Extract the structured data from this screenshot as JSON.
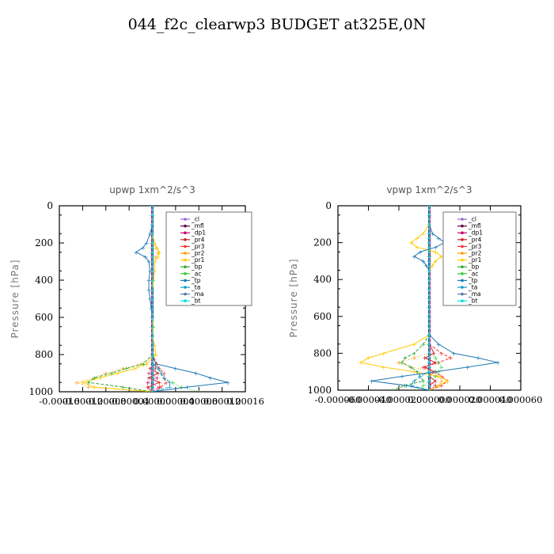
{
  "title": "044_f2c_clearwp3  BUDGET at325E,0N",
  "chart_data": [
    {
      "type": "line",
      "title": "upwp   1xm^2/s^3",
      "xlabel": "",
      "ylabel": "Pressure [hPa]",
      "xlim": [
        -0.00016,
        0.00016
      ],
      "ylim": [
        1000,
        0
      ],
      "xticks": [
        "-0.00012",
        "-0.00008",
        "-0.00004",
        "0.00000",
        "0.00004",
        "0.00008",
        "0.00012",
        "0.00016"
      ],
      "yticks": [
        "0",
        "200",
        "400",
        "600",
        "800",
        "1000"
      ],
      "legend_placement": "top-right",
      "pressure": [
        0,
        50,
        100,
        150,
        200,
        225,
        250,
        275,
        300,
        350,
        400,
        450,
        500,
        550,
        600,
        650,
        700,
        750,
        800,
        850,
        875,
        900,
        925,
        950,
        975,
        1000
      ],
      "series": [
        {
          "name": "_cl",
          "color": "#9966cc",
          "values": [
            0,
            0,
            0,
            0,
            0,
            0,
            0,
            0,
            0,
            0,
            0,
            0,
            0,
            0,
            0,
            0,
            0,
            0,
            0,
            0,
            0,
            0,
            0,
            0,
            0,
            0
          ]
        },
        {
          "name": "_mfl",
          "color": "#66004c",
          "values": [
            0,
            0,
            0,
            0,
            0,
            0,
            0,
            0,
            0,
            0,
            0,
            0,
            0,
            0,
            0,
            0,
            0,
            0,
            0,
            0,
            0,
            0,
            0,
            0,
            0,
            0
          ]
        },
        {
          "name": "_dp1",
          "color": "#cc0066",
          "values": [
            0,
            0,
            0,
            0,
            0,
            0,
            0,
            0,
            0,
            0,
            0,
            0,
            0,
            0,
            0,
            0,
            0,
            0,
            0,
            0,
            5e-06,
            -6e-06,
            8e-06,
            -8e-06,
            1.2e-05,
            0
          ]
        },
        {
          "name": "_pr4",
          "color": "#cc2222",
          "values": [
            0,
            0,
            0,
            0,
            0,
            0,
            0,
            0,
            0,
            0,
            0,
            0,
            0,
            0,
            0,
            0,
            0,
            0,
            0,
            6e-06,
            -4e-06,
            1e-05,
            -6e-06,
            1.2e-05,
            -8e-06,
            0
          ]
        },
        {
          "name": "_pr3",
          "color": "#ff3333",
          "values": [
            0,
            0,
            0,
            0,
            0,
            0,
            0,
            0,
            0,
            0,
            0,
            0,
            0,
            0,
            0,
            0,
            0,
            0,
            0,
            8e-06,
            1.2e-05,
            2e-05,
            2e-05,
            2.4e-05,
            1.4e-05,
            0
          ]
        },
        {
          "name": "_pr2",
          "color": "#ff9900",
          "values": [
            0,
            0,
            0,
            0,
            0,
            6e-06,
            1e-05,
            6e-06,
            0,
            0,
            0,
            0,
            0,
            0,
            0,
            0,
            0,
            0,
            6e-06,
            -2e-05,
            -5e-05,
            -8e-05,
            -0.0001,
            -0.00013,
            -0.00011,
            0
          ]
        },
        {
          "name": "_pr1",
          "color": "#ffcc00",
          "values": [
            0,
            0,
            0,
            0,
            4e-06,
            8e-06,
            1.2e-05,
            1e-05,
            4e-06,
            4e-06,
            2e-06,
            0,
            0,
            0,
            0,
            2e-06,
            0,
            4e-06,
            6e-06,
            -1e-05,
            -3e-05,
            -6e-05,
            -9e-05,
            -0.00012,
            -0.0001,
            0
          ]
        },
        {
          "name": "_bp",
          "color": "#33aa33",
          "values": [
            0,
            0,
            0,
            0,
            0,
            0,
            0,
            0,
            0,
            0,
            0,
            0,
            0,
            0,
            0,
            0,
            0,
            0,
            0,
            -1.5e-05,
            -4.5e-05,
            -7e-05,
            -0.0001,
            -0.00011,
            -5e-05,
            0
          ]
        },
        {
          "name": "_ac",
          "color": "#33cc33",
          "values": [
            0,
            0,
            0,
            0,
            0,
            0,
            0,
            0,
            0,
            0,
            0,
            0,
            0,
            0,
            0,
            0,
            0,
            0,
            0,
            0,
            1e-05,
            1.5e-05,
            2e-05,
            3.5e-05,
            5e-05,
            8e-05
          ]
        },
        {
          "name": "_tp",
          "color": "#1f78b4",
          "values": [
            0,
            0,
            0,
            -4e-06,
            -1e-05,
            -1.6e-05,
            -2.8e-05,
            -1.2e-05,
            -6e-06,
            -4e-06,
            -6e-06,
            -6e-06,
            -4e-06,
            -2e-06,
            0,
            0,
            0,
            0,
            0,
            6e-06,
            4e-05,
            7.5e-05,
            0.0001,
            0.00013,
            6e-05,
            0
          ]
        },
        {
          "name": "_ta",
          "color": "#1199cc",
          "values": [
            0,
            0,
            0,
            0,
            0,
            0,
            0,
            0,
            0,
            0,
            0,
            0,
            0,
            0,
            0,
            0,
            0,
            0,
            0,
            0,
            1e-05,
            1.5e-05,
            2e-05,
            3e-05,
            3e-05,
            0
          ]
        },
        {
          "name": "_ma",
          "color": "#5577aa",
          "values": [
            0,
            0,
            0,
            0,
            0,
            0,
            0,
            0,
            0,
            0,
            0,
            0,
            0,
            0,
            0,
            0,
            0,
            0,
            0,
            0,
            0,
            0,
            0,
            0,
            0,
            0
          ]
        },
        {
          "name": "_bt",
          "color": "#00dddd",
          "values": [
            0,
            0,
            0,
            0,
            0,
            0,
            0,
            0,
            0,
            0,
            0,
            0,
            0,
            0,
            0,
            0,
            0,
            0,
            0,
            0,
            0,
            0,
            0,
            0,
            0,
            0
          ]
        }
      ]
    },
    {
      "type": "line",
      "title": "vpwp   1xm^2/s^3",
      "xlabel": "",
      "ylabel": "Pressure [hPa]",
      "xlim": [
        -6e-05,
        6e-05
      ],
      "ylim": [
        1000,
        0
      ],
      "xticks": [
        "-0.000060",
        "-0.000040",
        "-0.000020",
        "0.000000",
        "0.000020",
        "0.000040",
        "0.000060"
      ],
      "yticks": [
        "0",
        "200",
        "400",
        "600",
        "800",
        "1000"
      ],
      "legend_placement": "top-right",
      "pressure": [
        0,
        50,
        100,
        150,
        175,
        200,
        225,
        250,
        275,
        300,
        325,
        350,
        400,
        450,
        500,
        550,
        600,
        650,
        700,
        750,
        800,
        825,
        850,
        875,
        900,
        925,
        950,
        975,
        1000
      ],
      "series": [
        {
          "name": "_cl",
          "color": "#9966cc",
          "values": [
            0,
            0,
            0,
            0,
            0,
            0,
            0,
            0,
            0,
            0,
            0,
            0,
            0,
            0,
            0,
            0,
            0,
            0,
            0,
            0,
            0,
            0,
            0,
            0,
            0,
            0,
            0,
            0,
            0
          ]
        },
        {
          "name": "_mfl",
          "color": "#66004c",
          "values": [
            0,
            0,
            0,
            0,
            0,
            0,
            0,
            0,
            0,
            0,
            0,
            0,
            0,
            0,
            0,
            0,
            0,
            0,
            0,
            0,
            0,
            0,
            0,
            0,
            0,
            0,
            0,
            0,
            0
          ]
        },
        {
          "name": "_dp1",
          "color": "#cc0066",
          "values": [
            0,
            0,
            0,
            0,
            0,
            0,
            0,
            0,
            0,
            0,
            0,
            0,
            0,
            0,
            0,
            0,
            0,
            0,
            0,
            0,
            0,
            0,
            0,
            0,
            0,
            0,
            0,
            4e-06,
            0
          ]
        },
        {
          "name": "_pr4",
          "color": "#cc2222",
          "values": [
            0,
            0,
            0,
            0,
            0,
            0,
            0,
            0,
            0,
            0,
            0,
            0,
            0,
            0,
            0,
            0,
            0,
            0,
            0,
            0,
            3e-06,
            -3e-06,
            4e-06,
            -3e-06,
            3e-06,
            0,
            4e-06,
            0,
            0
          ]
        },
        {
          "name": "_pr3",
          "color": "#ff3333",
          "values": [
            0,
            0,
            0,
            0,
            0,
            0,
            0,
            0,
            0,
            0,
            0,
            0,
            0,
            0,
            0,
            0,
            0,
            0,
            0,
            0,
            8e-06,
            1.4e-05,
            6e-06,
            -4e-06,
            4e-06,
            8e-06,
            1.2e-05,
            8e-06,
            0
          ]
        },
        {
          "name": "_pr2",
          "color": "#ff9900",
          "values": [
            0,
            0,
            0,
            0,
            0,
            0,
            0,
            0,
            0,
            0,
            0,
            0,
            0,
            0,
            0,
            0,
            0,
            0,
            0,
            0,
            0,
            -1e-05,
            -2e-05,
            -1.2e-05,
            4e-06,
            6e-06,
            8e-06,
            6e-06,
            0
          ]
        },
        {
          "name": "_pr1",
          "color": "#ffcc00",
          "values": [
            0,
            0,
            0,
            -4e-06,
            -8e-06,
            -1.2e-05,
            -8e-06,
            4e-06,
            8e-06,
            4e-06,
            2e-06,
            0,
            0,
            0,
            0,
            0,
            0,
            0,
            0,
            -1e-05,
            -3e-05,
            -4e-05,
            -4.5e-05,
            -3e-05,
            -1e-05,
            6e-06,
            1.2e-05,
            6e-06,
            0
          ]
        },
        {
          "name": "_bp",
          "color": "#33aa33",
          "values": [
            0,
            0,
            0,
            0,
            0,
            0,
            0,
            0,
            0,
            0,
            0,
            0,
            0,
            0,
            0,
            0,
            0,
            0,
            0,
            -4e-06,
            -1e-05,
            -1.6e-05,
            -1.8e-05,
            -1.2e-05,
            -8e-06,
            -6e-06,
            -4e-06,
            -1.6e-05,
            -2.4e-05
          ]
        },
        {
          "name": "_ac",
          "color": "#33cc33",
          "values": [
            0,
            0,
            0,
            0,
            0,
            0,
            0,
            0,
            0,
            0,
            0,
            0,
            0,
            0,
            0,
            0,
            0,
            0,
            0,
            0,
            0,
            4e-06,
            6e-06,
            8e-06,
            6e-06,
            4e-06,
            0,
            -4e-06,
            -8e-06
          ]
        },
        {
          "name": "_tp",
          "color": "#1f78b4",
          "values": [
            0,
            0,
            0,
            2e-06,
            6e-06,
            1e-05,
            4e-06,
            -6e-06,
            -1e-05,
            -4e-06,
            -2e-06,
            0,
            0,
            0,
            0,
            0,
            0,
            0,
            0,
            6e-06,
            1.6e-05,
            3.2e-05,
            4.5e-05,
            2.5e-05,
            4e-06,
            -1.8e-05,
            -3.8e-05,
            -1.5e-05,
            0
          ]
        },
        {
          "name": "_ta",
          "color": "#1199cc",
          "values": [
            0,
            0,
            0,
            0,
            0,
            0,
            0,
            0,
            0,
            0,
            0,
            0,
            0,
            0,
            0,
            0,
            0,
            0,
            0,
            0,
            0,
            0,
            0,
            0,
            0,
            -6e-06,
            -1e-05,
            -1.2e-05,
            0
          ]
        },
        {
          "name": "_ma",
          "color": "#5577aa",
          "values": [
            0,
            0,
            0,
            0,
            0,
            0,
            0,
            0,
            0,
            0,
            0,
            0,
            0,
            0,
            0,
            0,
            0,
            0,
            0,
            0,
            0,
            0,
            0,
            0,
            0,
            0,
            0,
            0,
            0
          ]
        },
        {
          "name": "_bt",
          "color": "#00dddd",
          "values": [
            0,
            0,
            0,
            0,
            0,
            0,
            0,
            0,
            0,
            0,
            0,
            0,
            0,
            0,
            0,
            0,
            0,
            0,
            0,
            0,
            0,
            0,
            0,
            0,
            0,
            0,
            0,
            0,
            0
          ]
        }
      ]
    }
  ]
}
